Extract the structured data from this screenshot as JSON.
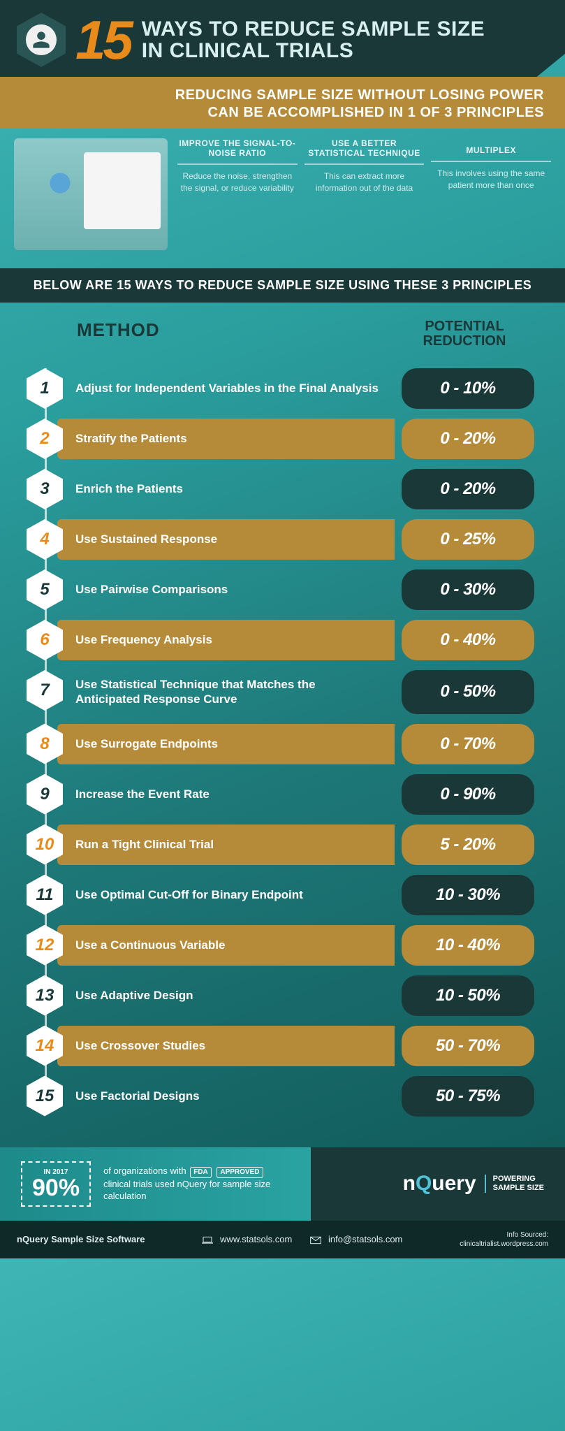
{
  "header": {
    "big_number": "15",
    "title_line1": "WAYS TO REDUCE SAMPLE SIZE",
    "title_line2": "IN CLINICAL TRIALS"
  },
  "principles_banner": {
    "line1": "REDUCING SAMPLE SIZE WITHOUT LOSING POWER",
    "line2": "CAN BE ACCOMPLISHED IN 1 OF 3 PRINCIPLES"
  },
  "principles": [
    {
      "title": "IMPROVE THE SIGNAL-TO-NOISE RATIO",
      "desc": "Reduce the noise, strengthen the signal, or reduce variability"
    },
    {
      "title": "USE A BETTER STATISTICAL TECHNIQUE",
      "desc": "This can extract more information out of the data"
    },
    {
      "title": "MULTIPLEX",
      "desc": "This involves using the same patient more than once"
    }
  ],
  "dark_banner": "BELOW ARE 15 WAYS TO REDUCE SAMPLE SIZE USING THESE 3 PRINCIPLES",
  "table_head": {
    "left": "METHOD",
    "right_line1": "POTENTIAL",
    "right_line2": "REDUCTION"
  },
  "methods": [
    {
      "n": "1",
      "label": "Adjust for Independent Variables in the Final Analysis",
      "reduction": "0 - 10%"
    },
    {
      "n": "2",
      "label": "Stratify the Patients",
      "reduction": "0 - 20%"
    },
    {
      "n": "3",
      "label": "Enrich the Patients",
      "reduction": "0 - 20%"
    },
    {
      "n": "4",
      "label": "Use Sustained Response",
      "reduction": "0 - 25%"
    },
    {
      "n": "5",
      "label": "Use Pairwise Comparisons",
      "reduction": "0 - 30%"
    },
    {
      "n": "6",
      "label": "Use Frequency Analysis",
      "reduction": "0 - 40%"
    },
    {
      "n": "7",
      "label": "Use Statistical Technique that Matches the Anticipated Response Curve",
      "reduction": "0 - 50%"
    },
    {
      "n": "8",
      "label": "Use Surrogate Endpoints",
      "reduction": "0 - 70%"
    },
    {
      "n": "9",
      "label": "Increase the Event Rate",
      "reduction": "0 - 90%"
    },
    {
      "n": "10",
      "label": "Run a Tight Clinical Trial",
      "reduction": "5 - 20%"
    },
    {
      "n": "11",
      "label": "Use Optimal Cut-Off for Binary Endpoint",
      "reduction": "10 - 30%"
    },
    {
      "n": "12",
      "label": "Use a Continuous Variable",
      "reduction": "10 - 40%"
    },
    {
      "n": "13",
      "label": "Use Adaptive Design",
      "reduction": "10 - 50%"
    },
    {
      "n": "14",
      "label": "Use Crossover Studies",
      "reduction": "50 - 70%"
    },
    {
      "n": "15",
      "label": "Use Factorial Designs",
      "reduction": "50 - 75%"
    }
  ],
  "colors": {
    "dark": "#1a3838",
    "gold": "#b58b3a",
    "orange": "#e88b1a",
    "teal_light": "#3fb5b5"
  },
  "bottom": {
    "year_label": "IN 2017",
    "percent": "90%",
    "text_pre": "of organizations with ",
    "fda": "FDA",
    "approved": "APPROVED",
    "text_post": " clinical trials used nQuery for sample size calculation",
    "brand_pre": "n",
    "brand_q": "Q",
    "brand_post": "uery",
    "tag_line1": "POWERING",
    "tag_line2": "SAMPLE SIZE"
  },
  "footer": {
    "product": "nQuery Sample Size Software",
    "site": "www.statsols.com",
    "email": "info@statsols.com",
    "source_label": "Info Sourced:",
    "source_value": "clinicaltrialist.wordpress.com"
  }
}
